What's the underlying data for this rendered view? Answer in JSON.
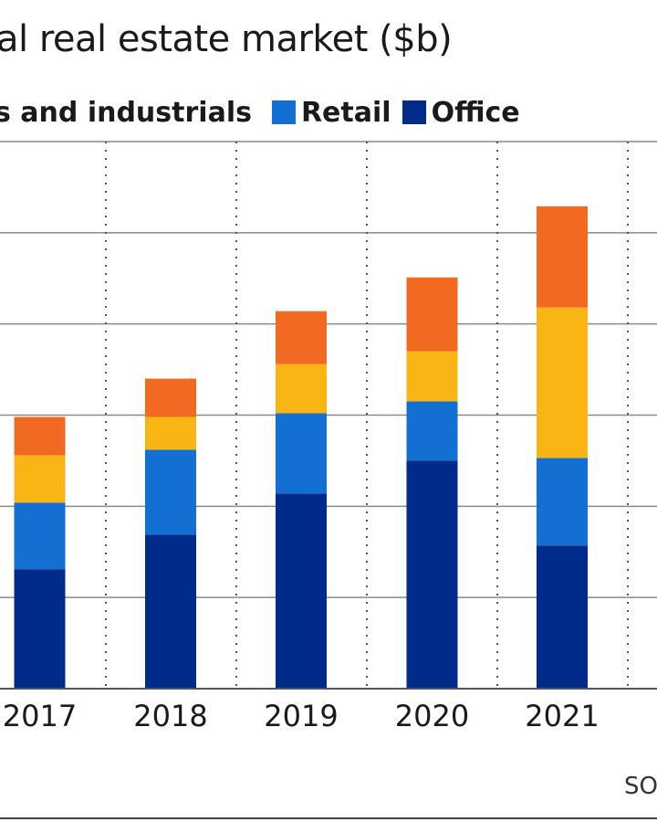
{
  "chart_data": {
    "type": "bar",
    "stacked": true,
    "title": "al real estate market ($b)",
    "categories": [
      "2017",
      "2018",
      "2019",
      "2020",
      "2021"
    ],
    "series": [
      {
        "name": "Office",
        "values": [
          13.1,
          16.9,
          21.4,
          25.0,
          15.7
        ]
      },
      {
        "name": "Retail",
        "values": [
          7.3,
          9.3,
          8.8,
          6.5,
          9.6
        ]
      },
      {
        "name": "s and industrials",
        "values": [
          5.2,
          3.6,
          5.4,
          5.5,
          16.5
        ]
      },
      {
        "name": "",
        "values": [
          4.2,
          4.2,
          5.8,
          8.1,
          11.1
        ]
      }
    ],
    "colors": [
      "#002b8a",
      "#136fd1",
      "#f9b513",
      "#f26a22"
    ],
    "ylim": [
      0,
      60
    ],
    "grid": {
      "horizontal": true,
      "vertical": "dotted"
    },
    "legend_position": "top",
    "source_label": "SO"
  }
}
